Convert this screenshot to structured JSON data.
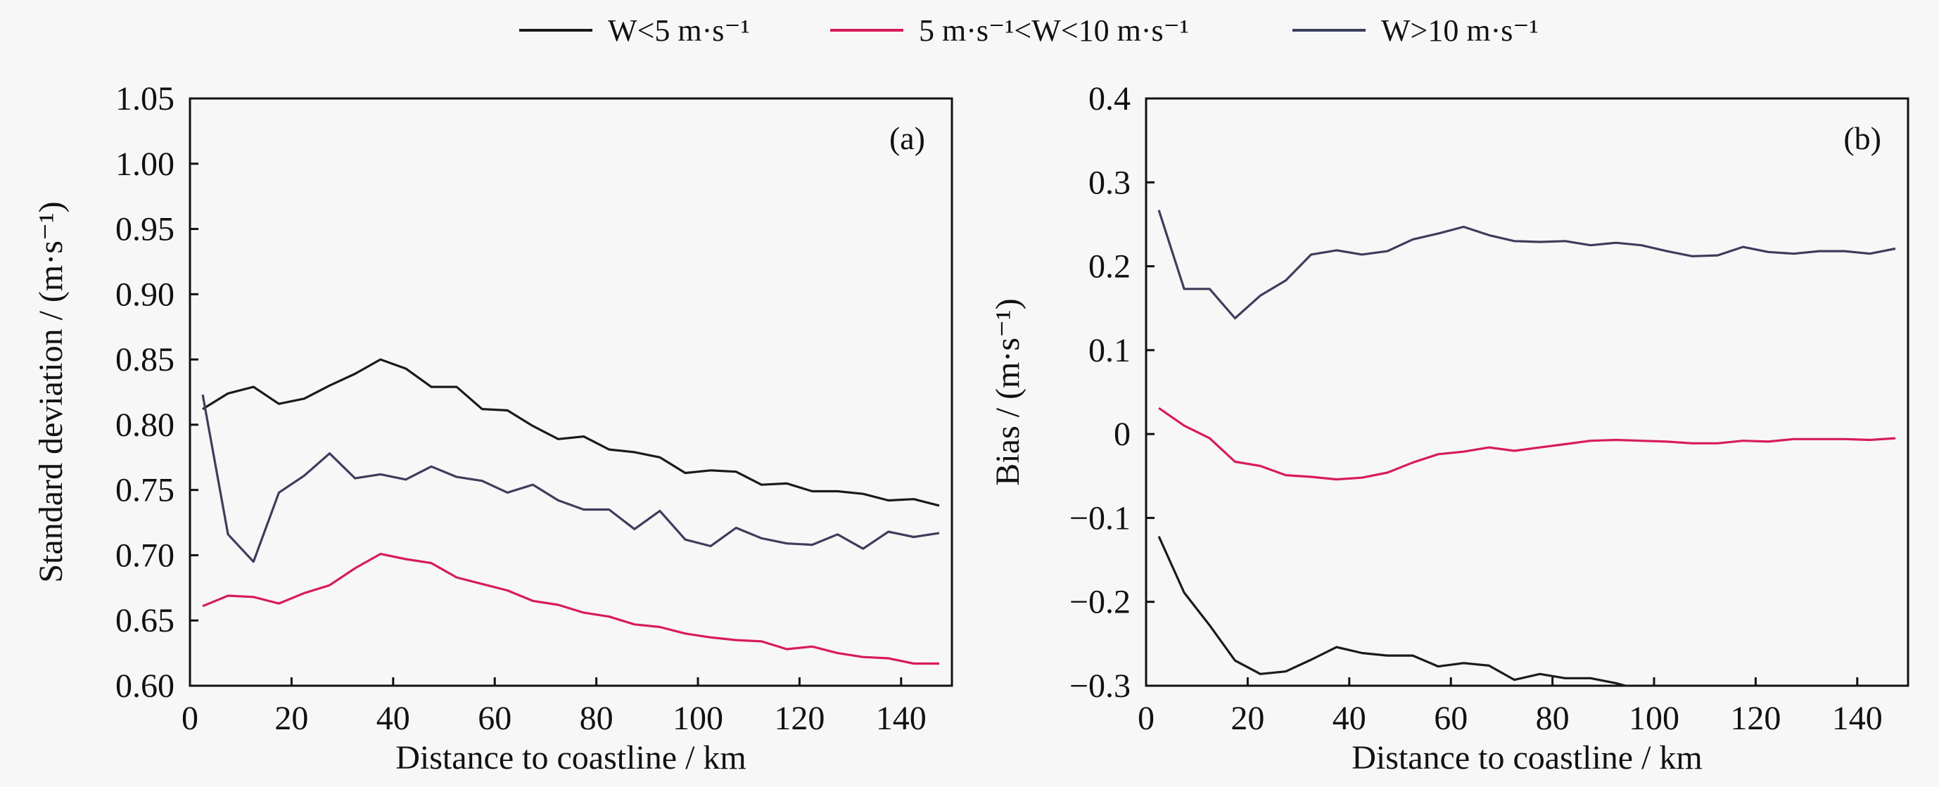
{
  "legend": [
    {
      "label": "W<5 m·s⁻¹",
      "color": "#1a1a1a"
    },
    {
      "label": "5 m·s⁻¹<W<10 m·s⁻¹",
      "color": "#d81b5a"
    },
    {
      "label": "W>10 m·s⁻¹",
      "color": "#3d3d5c"
    }
  ],
  "chart_data": [
    {
      "type": "line",
      "panel_label": "(a)",
      "xlabel": "Distance to coastline / km",
      "ylabel": "Standard deviation / (m·s⁻¹)",
      "xlim": [
        0,
        150
      ],
      "ylim": [
        0.6,
        1.05
      ],
      "xticks": [
        0,
        20,
        40,
        60,
        80,
        100,
        120,
        140
      ],
      "xtick_labels": [
        "0",
        "20",
        "40",
        "60",
        "80",
        "100",
        "120",
        "140"
      ],
      "yticks": [
        0.6,
        0.65,
        0.7,
        0.75,
        0.8,
        0.85,
        0.9,
        0.95,
        1.0,
        1.05
      ],
      "ytick_labels": [
        "0.60",
        "0.65",
        "0.70",
        "0.75",
        "0.80",
        "0.85",
        "0.90",
        "0.95",
        "1.00",
        "1.05"
      ],
      "grid": false,
      "x": [
        2.5,
        7.5,
        12.5,
        17.5,
        22.5,
        27.5,
        32.5,
        37.5,
        42.5,
        47.5,
        52.5,
        57.5,
        62.5,
        67.5,
        72.5,
        77.5,
        82.5,
        87.5,
        92.5,
        97.5,
        102.5,
        107.5,
        112.5,
        117.5,
        122.5,
        127.5,
        132.5,
        137.5,
        142.5,
        147.5
      ],
      "series": [
        {
          "name": "W<5 m·s⁻¹",
          "color": "#1a1a1a",
          "values": [
            0.812,
            0.824,
            0.829,
            0.816,
            0.82,
            0.83,
            0.839,
            0.85,
            0.843,
            0.829,
            0.829,
            0.812,
            0.811,
            0.799,
            0.789,
            0.791,
            0.781,
            0.779,
            0.775,
            0.763,
            0.765,
            0.764,
            0.754,
            0.755,
            0.749,
            0.749,
            0.747,
            0.742,
            0.743,
            0.738
          ]
        },
        {
          "name": "5 m·s⁻¹<W<10 m·s⁻¹",
          "color": "#d81b5a",
          "values": [
            0.661,
            0.669,
            0.668,
            0.663,
            0.671,
            0.677,
            0.69,
            0.701,
            0.697,
            0.694,
            0.683,
            0.678,
            0.673,
            0.665,
            0.662,
            0.656,
            0.653,
            0.647,
            0.645,
            0.64,
            0.637,
            0.635,
            0.634,
            0.628,
            0.63,
            0.625,
            0.622,
            0.621,
            0.617,
            0.617
          ]
        },
        {
          "name": "W>10 m·s⁻¹",
          "color": "#3d3d5c",
          "values": [
            0.823,
            0.716,
            0.695,
            0.748,
            0.761,
            0.778,
            0.759,
            0.762,
            0.758,
            0.768,
            0.76,
            0.757,
            0.748,
            0.754,
            0.742,
            0.735,
            0.735,
            0.72,
            0.734,
            0.712,
            0.707,
            0.721,
            0.713,
            0.709,
            0.708,
            0.716,
            0.705,
            0.718,
            0.714,
            0.717
          ]
        }
      ]
    },
    {
      "type": "line",
      "panel_label": "(b)",
      "xlabel": "Distance to coastline / km",
      "ylabel": "Bias / (m·s⁻¹)",
      "xlim": [
        0,
        150
      ],
      "ylim": [
        -0.3,
        0.4
      ],
      "xticks": [
        0,
        20,
        40,
        60,
        80,
        100,
        120,
        140
      ],
      "xtick_labels": [
        "0",
        "20",
        "40",
        "60",
        "80",
        "100",
        "120",
        "140"
      ],
      "yticks": [
        -0.3,
        -0.2,
        -0.1,
        0,
        0.1,
        0.2,
        0.3,
        0.4
      ],
      "ytick_labels": [
        "−0.3",
        "−0.2",
        "−0.1",
        "0",
        "0.1",
        "0.2",
        "0.3",
        "0.4"
      ],
      "grid": false,
      "x": [
        2.5,
        7.5,
        12.5,
        17.5,
        22.5,
        27.5,
        32.5,
        37.5,
        42.5,
        47.5,
        52.5,
        57.5,
        62.5,
        67.5,
        72.5,
        77.5,
        82.5,
        87.5,
        92.5,
        97.5,
        102.5,
        107.5,
        112.5,
        117.5,
        122.5,
        127.5,
        132.5,
        137.5,
        142.5,
        147.5
      ],
      "series": [
        {
          "name": "W<5 m·s⁻¹",
          "color": "#1a1a1a",
          "values": [
            -0.122,
            -0.189,
            -0.228,
            -0.27,
            -0.286,
            -0.283,
            -0.269,
            -0.254,
            -0.261,
            -0.264,
            -0.264,
            -0.277,
            -0.273,
            -0.276,
            -0.293,
            -0.286,
            -0.291,
            -0.291,
            -0.297,
            -0.305,
            null,
            null,
            null,
            null,
            null,
            null,
            null,
            null,
            null,
            null
          ]
        },
        {
          "name": "5 m·s⁻¹<W<10 m·s⁻¹",
          "color": "#d81b5a",
          "values": [
            0.031,
            0.01,
            -0.005,
            -0.033,
            -0.038,
            -0.049,
            -0.051,
            -0.054,
            -0.052,
            -0.046,
            -0.034,
            -0.024,
            -0.021,
            -0.016,
            -0.02,
            -0.016,
            -0.012,
            -0.008,
            -0.007,
            -0.008,
            -0.009,
            -0.011,
            -0.011,
            -0.008,
            -0.009,
            -0.006,
            -0.006,
            -0.006,
            -0.007,
            -0.005
          ]
        },
        {
          "name": "W>10 m·s⁻¹",
          "color": "#3d3d5c",
          "values": [
            0.267,
            0.173,
            0.173,
            0.138,
            0.165,
            0.183,
            0.214,
            0.219,
            0.214,
            0.218,
            0.232,
            0.239,
            0.247,
            0.237,
            0.23,
            0.229,
            0.23,
            0.225,
            0.228,
            0.225,
            0.218,
            0.212,
            0.213,
            0.223,
            0.217,
            0.215,
            0.218,
            0.218,
            0.215,
            0.221
          ]
        }
      ]
    }
  ]
}
